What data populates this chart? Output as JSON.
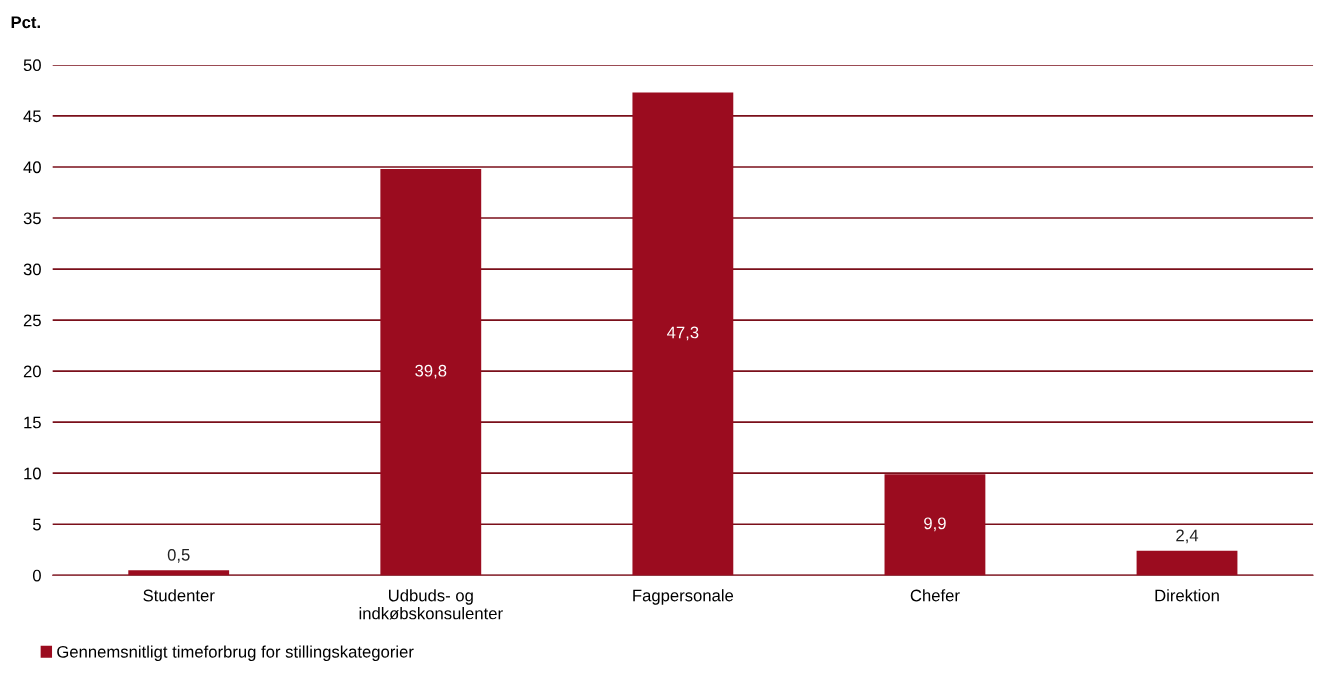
{
  "chart_data": {
    "type": "bar",
    "ylabel": "Pct.",
    "categories": [
      "Studenter",
      "Udbuds- og\nindkøbskonsulenter",
      "Fagpersonale",
      "Chefer",
      "Direktion"
    ],
    "series": [
      {
        "name": "Gennemsnitligt timeforbrug for stillingskategorier",
        "color": "#9b0c1f",
        "values": [
          0.5,
          39.8,
          47.3,
          9.9,
          2.4
        ],
        "value_labels": [
          "0,5",
          "39,8",
          "47,3",
          "9,9",
          "2,4"
        ]
      }
    ],
    "ylim": [
      0,
      50
    ],
    "yticks": [
      0,
      5,
      10,
      15,
      20,
      25,
      30,
      35,
      40,
      45,
      50
    ],
    "grid": "y",
    "legend": "bottom left"
  }
}
